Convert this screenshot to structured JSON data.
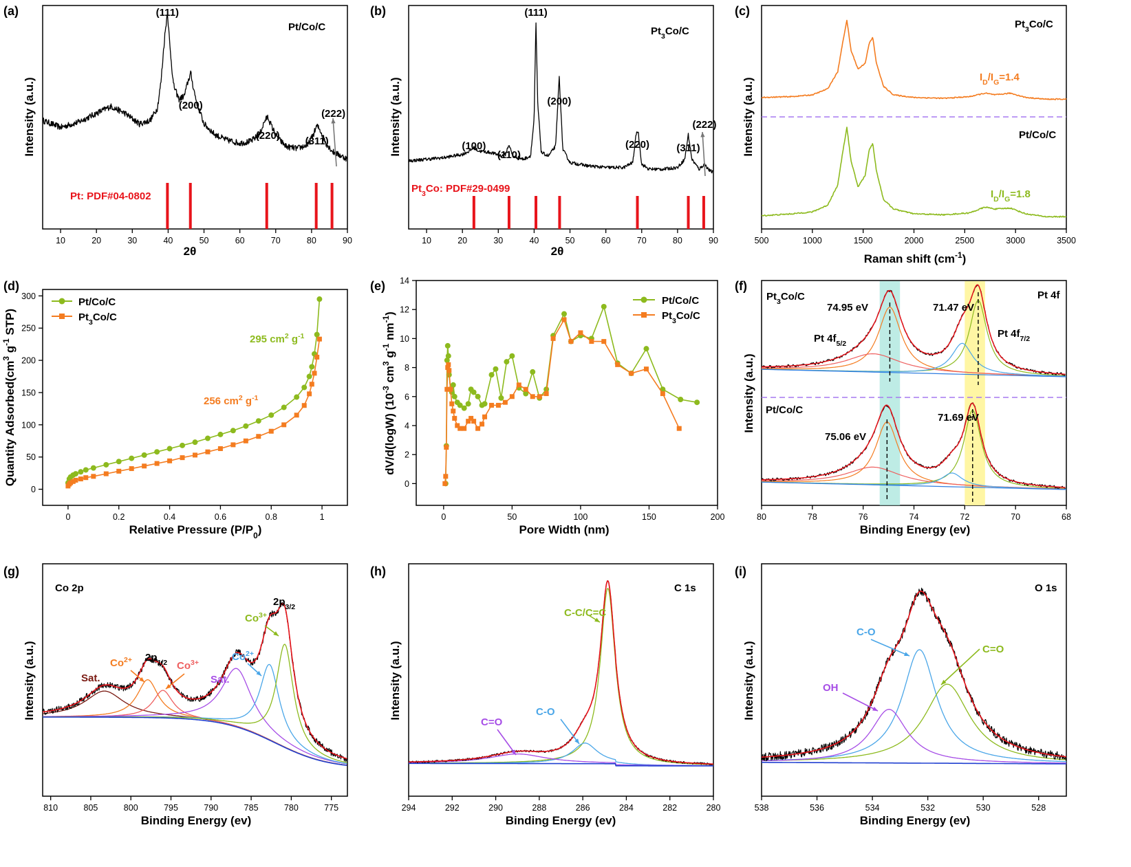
{
  "chart_data": [
    {
      "panel": "(a)",
      "type": "line",
      "title": "Pt/Co/C",
      "xlabel": "2θ",
      "ylabel": "Intensity (a.u.)",
      "xlim": [
        5,
        90
      ],
      "xticks": [
        10,
        20,
        30,
        40,
        50,
        60,
        70,
        80,
        90
      ],
      "series": [
        {
          "color": "#000000",
          "x": [
            5,
            10,
            15,
            20,
            24,
            28,
            32,
            35,
            37,
            38,
            39,
            39.8,
            40.5,
            41.5,
            43,
            44.5,
            45.5,
            46.3,
            47,
            48,
            50,
            53,
            56,
            60,
            63,
            65.5,
            67,
            67.8,
            69,
            70.5,
            73,
            76,
            79,
            80.5,
            81.5,
            82.5,
            84,
            86,
            88,
            90
          ],
          "y": [
            0.38,
            0.34,
            0.37,
            0.42,
            0.46,
            0.42,
            0.36,
            0.38,
            0.45,
            0.6,
            0.85,
            1.0,
            0.8,
            0.58,
            0.5,
            0.52,
            0.6,
            0.65,
            0.57,
            0.48,
            0.36,
            0.3,
            0.27,
            0.25,
            0.26,
            0.3,
            0.38,
            0.4,
            0.34,
            0.28,
            0.23,
            0.22,
            0.24,
            0.3,
            0.35,
            0.32,
            0.25,
            0.2,
            0.18,
            0.16
          ]
        }
      ],
      "peaks": [
        {
          "label": "(111)",
          "x": 39.8
        },
        {
          "label": "(200)",
          "x": 46.3
        },
        {
          "label": "(220)",
          "x": 67.8
        },
        {
          "label": "(311)",
          "x": 81.5
        },
        {
          "label": "(222)",
          "x": 85.7
        }
      ],
      "reference": {
        "label": "Pt: PDF#04-0802",
        "lines": [
          39.8,
          46.2,
          67.5,
          81.3,
          85.7
        ],
        "color": "#e8141b"
      }
    },
    {
      "panel": "(b)",
      "type": "line",
      "title": "Pt3Co/C",
      "xlabel": "2θ",
      "ylabel": "Intensity (a.u.)",
      "xlim": [
        5,
        90
      ],
      "xticks": [
        10,
        20,
        30,
        40,
        50,
        60,
        70,
        80,
        90
      ],
      "series": [
        {
          "color": "#000000",
          "x": [
            5,
            10,
            15,
            20,
            22,
            23.2,
            24.5,
            28,
            31,
            32,
            33,
            34,
            37,
            39,
            40,
            40.5,
            41,
            42,
            44,
            46,
            47,
            48,
            50,
            55,
            60,
            65,
            67.5,
            68.5,
            69,
            70,
            72,
            76,
            80,
            82,
            83,
            84,
            86,
            87.5,
            89,
            90
          ],
          "y": [
            0.15,
            0.16,
            0.17,
            0.19,
            0.21,
            0.23,
            0.21,
            0.2,
            0.18,
            0.19,
            0.25,
            0.18,
            0.16,
            0.18,
            0.4,
            1.0,
            0.5,
            0.2,
            0.18,
            0.24,
            0.66,
            0.22,
            0.14,
            0.12,
            0.11,
            0.11,
            0.14,
            0.32,
            0.33,
            0.13,
            0.1,
            0.1,
            0.11,
            0.16,
            0.31,
            0.16,
            0.1,
            0.13,
            0.09,
            0.08
          ]
        }
      ],
      "peaks": [
        {
          "label": "(100)",
          "x": 23.2
        },
        {
          "label": "(110)",
          "x": 33
        },
        {
          "label": "(111)",
          "x": 40.5
        },
        {
          "label": "(200)",
          "x": 47
        },
        {
          "label": "(220)",
          "x": 68.8
        },
        {
          "label": "(311)",
          "x": 83
        },
        {
          "label": "(222)",
          "x": 87.5
        }
      ],
      "reference": {
        "label": "Pt3Co: PDF#29-0499",
        "lines": [
          23.2,
          33,
          40.5,
          47.1,
          68.8,
          83,
          87.3
        ],
        "color": "#e8141b"
      }
    },
    {
      "panel": "(c)",
      "type": "line",
      "xlabel": "Raman shift (cm-1)",
      "ylabel": "Intensity (a.u.)",
      "xlim": [
        500,
        3500
      ],
      "xticks": [
        500,
        1000,
        1500,
        2000,
        2500,
        3000,
        3500
      ],
      "series": [
        {
          "name": "Pt3Co/C",
          "ratio_label": "ID/IG=1.4",
          "color": "#f47c20",
          "x": [
            500,
            800,
            1000,
            1150,
            1250,
            1300,
            1340,
            1380,
            1450,
            1520,
            1560,
            1595,
            1630,
            1700,
            1800,
            2000,
            2300,
            2550,
            2700,
            2800,
            2950,
            3100,
            3300,
            3500
          ],
          "y": [
            0.05,
            0.06,
            0.08,
            0.15,
            0.35,
            0.7,
            0.95,
            0.6,
            0.38,
            0.45,
            0.68,
            0.75,
            0.45,
            0.18,
            0.08,
            0.05,
            0.04,
            0.06,
            0.1,
            0.08,
            0.1,
            0.05,
            0.03,
            0.03
          ]
        },
        {
          "name": "Pt/Co/C",
          "ratio_label": "ID/IG=1.8",
          "color": "#8dba1e",
          "x": [
            500,
            800,
            1000,
            1150,
            1250,
            1300,
            1340,
            1380,
            1450,
            1520,
            1560,
            1595,
            1630,
            1700,
            1800,
            2000,
            2300,
            2550,
            2700,
            2800,
            2950,
            3100,
            3300,
            3500
          ],
          "y": [
            0.03,
            0.05,
            0.07,
            0.14,
            0.35,
            0.7,
            0.95,
            0.6,
            0.33,
            0.45,
            0.72,
            0.78,
            0.5,
            0.2,
            0.1,
            0.05,
            0.04,
            0.06,
            0.12,
            0.1,
            0.11,
            0.05,
            0.02,
            0.02
          ]
        }
      ]
    },
    {
      "panel": "(d)",
      "type": "line",
      "xlabel": "Relative Pressure (P/P0)",
      "ylabel": "Quantity Adsorbed(cm3 g-1 STP)",
      "xlim": [
        -0.1,
        1.1
      ],
      "ylim": [
        -25,
        310
      ],
      "xticks": [
        0.0,
        0.2,
        0.4,
        0.6,
        0.8,
        1.0
      ],
      "yticks": [
        0,
        50,
        100,
        150,
        200,
        250,
        300
      ],
      "legend": "top-left",
      "series": [
        {
          "name": "Pt/Co/C",
          "color": "#8dba1e",
          "marker": "circle",
          "x": [
            0.0,
            0.005,
            0.01,
            0.02,
            0.03,
            0.05,
            0.07,
            0.1,
            0.15,
            0.2,
            0.25,
            0.3,
            0.35,
            0.4,
            0.45,
            0.5,
            0.55,
            0.6,
            0.65,
            0.7,
            0.75,
            0.8,
            0.85,
            0.9,
            0.93,
            0.95,
            0.96,
            0.97,
            0.98,
            0.99
          ],
          "y": [
            10,
            16,
            19,
            22,
            24,
            27,
            30,
            33,
            38,
            43,
            48,
            53,
            58,
            63,
            68,
            73,
            79,
            85,
            91,
            98,
            106,
            115,
            127,
            143,
            158,
            175,
            190,
            210,
            240,
            295
          ]
        },
        {
          "name": "Pt3Co/C",
          "color": "#f47c20",
          "marker": "square",
          "x": [
            0.0,
            0.005,
            0.01,
            0.02,
            0.03,
            0.05,
            0.07,
            0.1,
            0.15,
            0.2,
            0.25,
            0.3,
            0.35,
            0.4,
            0.45,
            0.5,
            0.55,
            0.6,
            0.65,
            0.7,
            0.75,
            0.8,
            0.85,
            0.9,
            0.93,
            0.95,
            0.96,
            0.97,
            0.98,
            0.99
          ],
          "y": [
            5,
            8,
            10,
            12,
            14,
            16,
            18,
            20,
            24,
            28,
            32,
            36,
            40,
            44,
            49,
            53,
            58,
            63,
            69,
            75,
            82,
            90,
            100,
            115,
            130,
            148,
            163,
            180,
            205,
            233
          ]
        }
      ],
      "annotations": [
        {
          "text": "295 cm2 g-1",
          "series": "Pt/Co/C"
        },
        {
          "text": "256 cm2 g-1",
          "series": "Pt3Co/C"
        }
      ]
    },
    {
      "panel": "(e)",
      "type": "line",
      "xlabel": "Pore Width (nm)",
      "ylabel": "dV/d(logW) (10-3 cm3 g-1 nm-1)",
      "xlim": [
        -20,
        200
      ],
      "ylim": [
        -1.5,
        14
      ],
      "xticks": [
        0,
        50,
        100,
        150,
        200
      ],
      "yticks": [
        0,
        2,
        4,
        6,
        8,
        10,
        12,
        14
      ],
      "legend": "top-right",
      "series": [
        {
          "name": "Pt/Co/C",
          "color": "#8dba1e",
          "marker": "circle",
          "x": [
            1.5,
            2,
            2.5,
            3,
            3.5,
            4,
            5,
            6,
            7,
            8,
            10,
            12,
            15,
            18,
            20,
            22,
            25,
            28,
            30,
            35,
            38,
            42,
            46,
            50,
            55,
            60,
            65,
            70,
            75,
            80,
            88,
            93,
            100,
            108,
            117,
            127,
            137,
            148,
            160,
            173,
            185
          ],
          "y": [
            0,
            2.6,
            8.5,
            9.5,
            8.8,
            7.5,
            6.5,
            6.3,
            6.8,
            6.0,
            5.6,
            5.4,
            5.2,
            5.5,
            6.5,
            6.3,
            6.0,
            5.4,
            5.5,
            7.5,
            7.9,
            5.9,
            8.4,
            8.8,
            6.6,
            6.2,
            7.7,
            5.9,
            6.5,
            10.2,
            11.7,
            9.8,
            10.2,
            10.0,
            12.2,
            8.3,
            7.6,
            9.3,
            6.5,
            5.8,
            5.6
          ]
        },
        {
          "name": "Pt3Co/C",
          "color": "#f47c20",
          "marker": "square",
          "x": [
            1,
            1.5,
            2,
            2.5,
            3,
            3.5,
            4,
            5,
            6,
            7,
            8,
            10,
            12,
            15,
            18,
            20,
            22,
            25,
            28,
            30,
            35,
            40,
            45,
            50,
            55,
            60,
            65,
            70,
            75,
            80,
            88,
            93,
            100,
            108,
            117,
            127,
            137,
            148,
            160,
            172
          ],
          "y": [
            0,
            0.5,
            2.5,
            6.5,
            8,
            8.2,
            7.8,
            6.5,
            5.5,
            5.0,
            4.5,
            4.0,
            3.8,
            3.8,
            4.3,
            4.5,
            4.3,
            3.8,
            4.1,
            4.6,
            5.4,
            5.4,
            5.6,
            6.0,
            6.8,
            6.5,
            6.0,
            6.0,
            6.2,
            10.0,
            11.3,
            9.8,
            10.4,
            9.8,
            9.8,
            8.2,
            7.6,
            7.9,
            6.2,
            3.8
          ]
        }
      ]
    },
    {
      "panel": "(f)",
      "type": "line",
      "title": "Pt 4f",
      "xlabel": "Binding Energy (ev)",
      "ylabel": "Intensity (a.u.)",
      "xlim": [
        80,
        68
      ],
      "xticks": [
        80,
        78,
        76,
        74,
        72,
        70,
        68
      ],
      "samples": [
        {
          "name": "Pt3Co/C",
          "peak_labels": [
            "74.95 eV",
            "71.47 eV"
          ],
          "peaks": [
            74.95,
            71.47
          ],
          "subpeak_labels": [
            "Pt 4f5/2",
            "Pt 4f7/2"
          ]
        },
        {
          "name": "Pt/Co/C",
          "peak_labels": [
            "75.06 eV",
            "71.69 eV"
          ],
          "peaks": [
            75.06,
            71.69
          ]
        }
      ]
    },
    {
      "panel": "(g)",
      "type": "line",
      "title": "Co 2p",
      "xlabel": "Binding Energy (ev)",
      "ylabel": "Intensity (a.u.)",
      "xlim": [
        811,
        773
      ],
      "xticks": [
        810,
        805,
        800,
        795,
        790,
        785,
        780,
        775
      ],
      "components": [
        {
          "label": "Sat.",
          "center": 803.3,
          "color": "#7a1a12"
        },
        {
          "label": "Co2+",
          "center": 797.9,
          "color": "#f47c20"
        },
        {
          "label": "Co3+",
          "center": 796.0,
          "color": "#ee6060"
        },
        {
          "label": "Sat.",
          "center": 786.8,
          "color": "#a64de6"
        },
        {
          "label": "Co2+",
          "center": 782.7,
          "color": "#4aa6e8"
        },
        {
          "label": "Co3+",
          "center": 780.8,
          "color": "#8dba1e"
        }
      ],
      "peak_labels": [
        "2p1/2",
        "2p3/2"
      ]
    },
    {
      "panel": "(h)",
      "type": "line",
      "title": "C 1s",
      "xlabel": "Binding Energy (ev)",
      "ylabel": "Intensity (a.u.)",
      "xlim": [
        294,
        280
      ],
      "xticks": [
        294,
        292,
        290,
        288,
        286,
        284,
        282,
        280
      ],
      "components": [
        {
          "label": "C-C/C=C",
          "center": 284.8,
          "color": "#8dba1e"
        },
        {
          "label": "C-O",
          "center": 285.9,
          "color": "#4aa6e8"
        },
        {
          "label": "C=O",
          "center": 289.0,
          "color": "#a64de6"
        }
      ]
    },
    {
      "panel": "(i)",
      "type": "line",
      "title": "O 1s",
      "xlabel": "Binding Energy (ev)",
      "ylabel": "Intensity (a.u.)",
      "xlim": [
        538,
        527
      ],
      "xticks": [
        538,
        536,
        534,
        532,
        530,
        528
      ],
      "components": [
        {
          "label": "C-O",
          "center": 532.3,
          "color": "#4aa6e8"
        },
        {
          "label": "C=O",
          "center": 531.3,
          "color": "#8dba1e"
        },
        {
          "label": "OH",
          "center": 533.4,
          "color": "#a64de6"
        }
      ]
    }
  ]
}
